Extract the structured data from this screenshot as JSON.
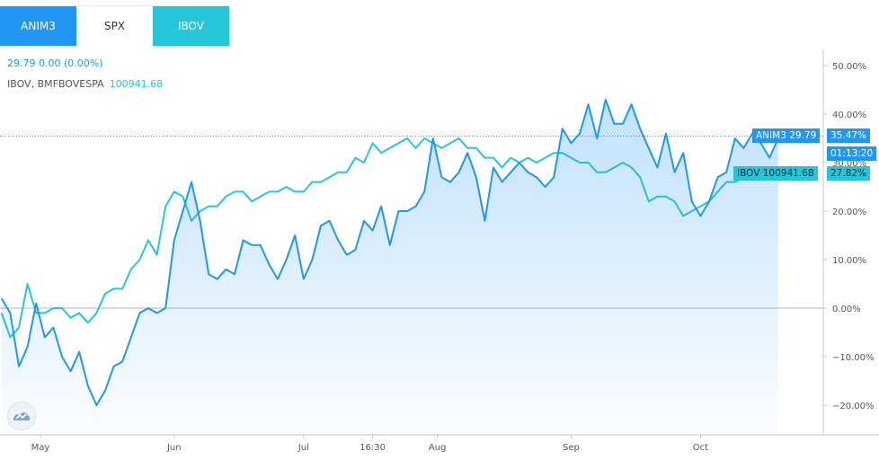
{
  "tabs": [
    {
      "label": "ANIM3",
      "state": "active"
    },
    {
      "label": "SPX",
      "state": "inactive"
    },
    {
      "label": "IBOV",
      "state": "active"
    }
  ],
  "legend": {
    "main": "29.79  0.00 (0.00%)",
    "compare_name": "IBOV, BMFBOVESPA",
    "compare_value": "100941.68"
  },
  "badges": {
    "anim3_label": "ANIM3  29.79",
    "anim3_pct": "35.47%",
    "time": "01:13:20",
    "ibov_label": "IBOV  100941.68",
    "ibov_pct": "27.82%"
  },
  "colors": {
    "anim3": "#2196f3",
    "ibov": "#26c6da"
  },
  "icons": {
    "logo": "tradingview-logo-icon"
  },
  "chart_data": {
    "type": "line",
    "y_unit": "%",
    "ylim": [
      -25,
      55
    ],
    "y_ticks": [
      "50.00%",
      "40.00%",
      "30.00%",
      "20.00%",
      "10.00%",
      "0.00%",
      "−10.00%",
      "−20.00%"
    ],
    "y_tick_values": [
      50,
      40,
      30,
      20,
      10,
      0,
      -10,
      -20
    ],
    "x_ticks": [
      "May",
      "Jun",
      "Jul",
      "16:30",
      "Aug",
      "Sep",
      "Oct"
    ],
    "x_tick_days": [
      1,
      32,
      62,
      78,
      93,
      124,
      154
    ],
    "series": [
      {
        "name": "ANIM3",
        "color": "#2196f3",
        "area": true,
        "days": [
          -8,
          -6,
          -4,
          -2,
          0,
          2,
          4,
          6,
          8,
          10,
          12,
          14,
          16,
          18,
          20,
          22,
          24,
          26,
          28,
          30,
          32,
          34,
          36,
          38,
          40,
          42,
          44,
          46,
          48,
          50,
          52,
          54,
          56,
          58,
          60,
          62,
          64,
          66,
          68,
          70,
          72,
          74,
          76,
          78,
          80,
          82,
          84,
          86,
          88,
          90,
          92,
          94,
          96,
          98,
          100,
          102,
          104,
          106,
          108,
          110,
          112,
          114,
          116,
          118,
          120,
          122,
          124,
          126,
          128,
          130,
          132,
          134,
          136,
          138,
          140,
          142,
          144,
          146,
          148,
          150,
          152,
          154,
          156,
          158,
          160,
          162,
          164,
          166,
          168,
          170,
          172
        ],
        "values": [
          2,
          -1,
          -12,
          -8,
          1,
          -6,
          -4,
          -10,
          -13,
          -9,
          -16,
          -20,
          -17,
          -12,
          -11,
          -6,
          -1,
          0,
          -1,
          0,
          14,
          20,
          26,
          18,
          7,
          6,
          8,
          7,
          14,
          13,
          13,
          9,
          6,
          10,
          15,
          6,
          10,
          17,
          18,
          14,
          11,
          12,
          18,
          16,
          21,
          13,
          20,
          20,
          21,
          24,
          35,
          27,
          26,
          28,
          32,
          27,
          18,
          29,
          26,
          28,
          30,
          28,
          27,
          25,
          27,
          37,
          34,
          36,
          42,
          35,
          43,
          38,
          38,
          42,
          37,
          33,
          29,
          36,
          28,
          32,
          22,
          19,
          22,
          27,
          28,
          35,
          33,
          36,
          34,
          31,
          35
        ]
      },
      {
        "name": "IBOV",
        "color": "#26c6da",
        "area": false,
        "days": [
          -8,
          -6,
          -4,
          -2,
          0,
          2,
          4,
          6,
          8,
          10,
          12,
          14,
          16,
          18,
          20,
          22,
          24,
          26,
          28,
          30,
          32,
          34,
          36,
          38,
          40,
          42,
          44,
          46,
          48,
          50,
          52,
          54,
          56,
          58,
          60,
          62,
          64,
          66,
          68,
          70,
          72,
          74,
          76,
          78,
          80,
          82,
          84,
          86,
          88,
          90,
          92,
          94,
          96,
          98,
          100,
          102,
          104,
          106,
          108,
          110,
          112,
          114,
          116,
          118,
          120,
          122,
          124,
          126,
          128,
          130,
          132,
          134,
          136,
          138,
          140,
          142,
          144,
          146,
          148,
          150,
          152,
          154,
          156,
          158,
          160,
          162,
          164,
          166,
          168,
          170,
          172
        ],
        "values": [
          -1,
          -6,
          -4,
          5,
          -1,
          -1,
          0,
          0,
          -2,
          -1,
          -3,
          -1,
          3,
          4,
          4,
          8,
          10,
          14,
          11,
          21,
          24,
          23,
          18,
          20,
          21,
          21,
          23,
          24,
          24,
          22,
          23,
          24,
          24,
          25,
          24,
          24,
          26,
          26,
          27,
          28,
          28,
          31,
          30,
          34,
          32,
          33,
          34,
          35,
          33,
          35,
          34,
          33,
          34,
          35,
          33,
          33,
          31,
          31,
          29,
          31,
          30,
          31,
          30,
          31,
          32,
          32,
          31,
          30,
          30,
          28,
          28,
          29,
          30,
          29,
          27,
          22,
          23,
          23,
          22,
          19,
          20,
          21,
          22,
          24,
          26,
          26,
          27,
          27,
          28,
          27,
          28
        ]
      }
    ],
    "grid": false,
    "legend_position": "top-left"
  }
}
